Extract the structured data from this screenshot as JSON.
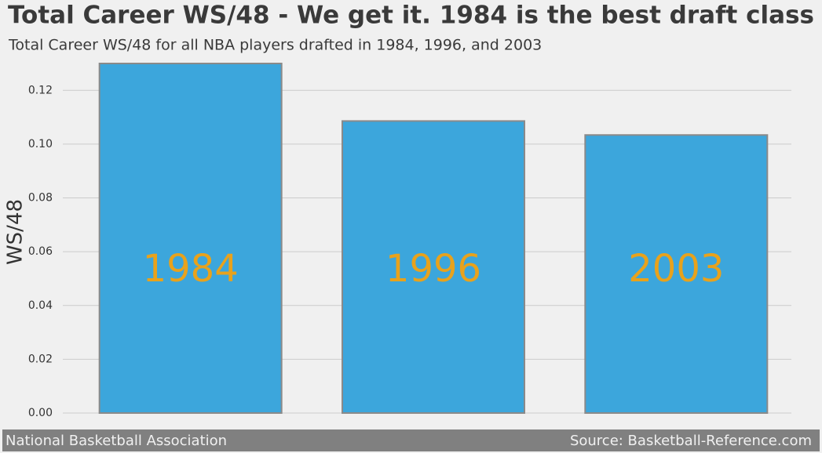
{
  "chart_data": {
    "type": "bar",
    "title": "Total Career WS/48 - We get it. 1984 is the best draft class",
    "subtitle": "Total Career WS/48 for all NBA players drafted in 1984, 1996, and 2003",
    "ylabel": "WS/48",
    "categories": [
      "1984",
      "1996",
      "2003"
    ],
    "values": [
      0.13,
      0.1086,
      0.1034
    ],
    "color": "#3ca6dc",
    "label_color": "#e8a21c",
    "ylim": [
      0,
      0.13
    ],
    "yticks": [
      {
        "value": 0,
        "label": "0.00"
      },
      {
        "value": 0.02,
        "label": "0.02"
      },
      {
        "value": 0.04,
        "label": "0.04"
      },
      {
        "value": 0.06,
        "label": "0.06"
      },
      {
        "value": 0.08,
        "label": "0.08"
      },
      {
        "value": 0.1,
        "label": "0.10"
      },
      {
        "value": 0.12,
        "label": "0.12"
      }
    ],
    "grid": true,
    "footer_left": "National Basketball Association",
    "footer_right": "Source: Basketball-Reference.com"
  }
}
